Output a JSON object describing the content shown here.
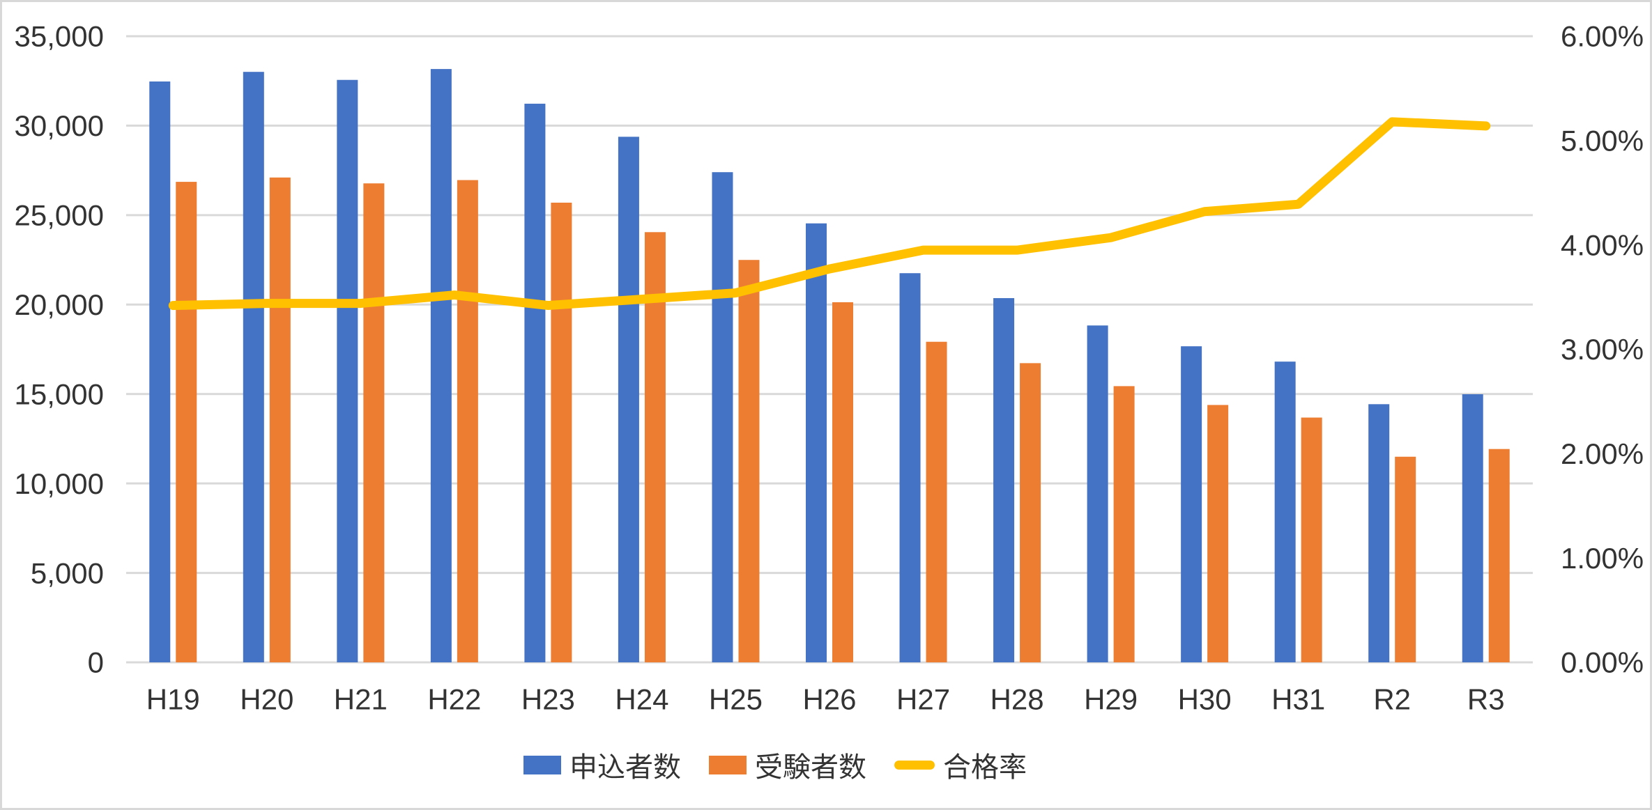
{
  "chart_data": {
    "type": "bar",
    "subtype": "combo-bar-line",
    "title": "",
    "categories": [
      "H19",
      "H20",
      "H21",
      "H22",
      "H23",
      "H24",
      "H25",
      "H26",
      "H27",
      "H28",
      "H29",
      "H30",
      "H31",
      "R2",
      "R3"
    ],
    "series": [
      {
        "name": "申込者数",
        "chart": "bar",
        "axis": "primary",
        "color": "#4472C4",
        "values": [
          32469,
          33007,
          32558,
          33166,
          31228,
          29379,
          27400,
          24538,
          21754,
          20360,
          18831,
          17668,
          16811,
          14431,
          14988
        ]
      },
      {
        "name": "受験者数",
        "chart": "bar",
        "axis": "primary",
        "color": "#ED7D31",
        "values": [
          26860,
          27102,
          26774,
          26958,
          25696,
          24048,
          22494,
          20130,
          17920,
          16725,
          15440,
          14387,
          13683,
          11494,
          11925
        ]
      },
      {
        "name": "合格率",
        "chart": "line",
        "axis": "secondary",
        "color": "#FFC000",
        "unit": "%",
        "values": [
          3.42,
          3.44,
          3.44,
          3.52,
          3.42,
          3.48,
          3.54,
          3.77,
          3.95,
          3.95,
          4.07,
          4.32,
          4.39,
          5.18,
          5.14
        ]
      }
    ],
    "primary_axis": {
      "min": 0,
      "max": 35000,
      "step": 5000,
      "tick_labels": [
        "0",
        "5,000",
        "10,000",
        "15,000",
        "20,000",
        "25,000",
        "30,000",
        "35,000"
      ]
    },
    "secondary_axis": {
      "min": 0,
      "max": 6,
      "step": 1,
      "tick_labels": [
        "0.00%",
        "1.00%",
        "2.00%",
        "3.00%",
        "4.00%",
        "5.00%",
        "6.00%"
      ]
    },
    "legend": {
      "position": "bottom",
      "items": [
        "申込者数",
        "受験者数",
        "合格率"
      ]
    },
    "grid": true,
    "style": {
      "background": "#FFFFFF",
      "gridline_color": "#D9D9D9",
      "border_color": "#D8D8D8",
      "text_color": "#333333"
    }
  }
}
